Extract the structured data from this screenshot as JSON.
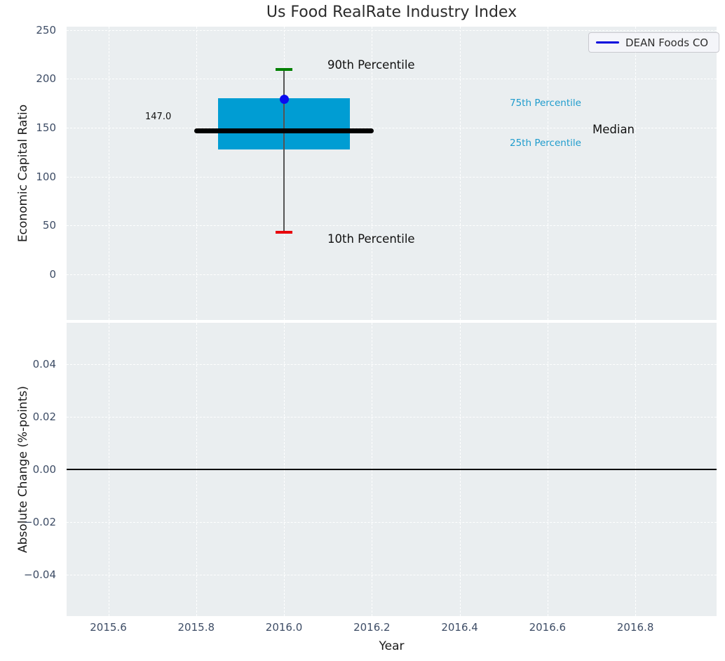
{
  "title": "Us Food RealRate Industry Index",
  "legend": {
    "label": "DEAN Foods CO"
  },
  "colors": {
    "axes_bg": "#eaeef0",
    "grid": "#ffffff",
    "tick_label": "#3e4d66",
    "box_fill": "#009dd3",
    "median": "#000000",
    "whisker": "#555555",
    "cap_90": "#008000",
    "cap_10": "#e8000b",
    "marker": "#0b0bf0",
    "legend_line": "#0000dd",
    "percentile_label": "#1f9ccd",
    "zero_line": "#000000"
  },
  "top_plot": {
    "ylabel": "Economic Capital Ratio",
    "y_tick_labels": [
      "250",
      "200",
      "150",
      "100",
      "50",
      "0"
    ],
    "annotations": {
      "median_value": "147.0",
      "p90": "90th Percentile",
      "p75": "75th Percentile",
      "median": "Median",
      "p25": "25th Percentile",
      "p10": "10th Percentile"
    }
  },
  "bottom_plot": {
    "ylabel": "Absolute Change (%-points)",
    "xlabel": "Year",
    "y_tick_labels": [
      "0.04",
      "0.02",
      "0.00",
      "−0.02",
      "−0.04"
    ],
    "x_tick_labels": [
      "2015.6",
      "2015.8",
      "2016.0",
      "2016.2",
      "2016.4",
      "2016.6",
      "2016.8"
    ]
  },
  "chart_data": [
    {
      "type": "boxplot",
      "title": "Us Food RealRate Industry Index",
      "xlabel": "Year",
      "ylabel": "Economic Capital Ratio",
      "xlim": [
        2015.505,
        2016.985
      ],
      "ylim": [
        -47,
        253.5
      ],
      "x_ticks": [
        2015.6,
        2015.8,
        2016.0,
        2016.2,
        2016.4,
        2016.6,
        2016.8
      ],
      "y_ticks": [
        250,
        200,
        150,
        100,
        50,
        0
      ],
      "grid": {
        "visible": true,
        "style": "dashed",
        "color": "#ffffff"
      },
      "legend_position": "upper right",
      "box": {
        "year": 2016.0,
        "p90": 210,
        "p75": 180,
        "median": 147.0,
        "p25": 128,
        "p10": 43,
        "box_year_span": [
          2015.85,
          2016.15
        ],
        "median_year_span": [
          2015.795,
          2016.205
        ]
      },
      "company_point": {
        "name": "DEAN Foods CO",
        "year": 2016.0,
        "value": 179
      }
    },
    {
      "type": "line",
      "xlabel": "Year",
      "ylabel": "Absolute Change (%-points)",
      "xlim": [
        2015.505,
        2016.985
      ],
      "ylim": [
        -0.0558,
        0.0558
      ],
      "x_ticks": [
        2015.6,
        2015.8,
        2016.0,
        2016.2,
        2016.4,
        2016.6,
        2016.8
      ],
      "y_ticks": [
        0.04,
        0.02,
        0.0,
        -0.02,
        -0.04
      ],
      "zero_line": 0.0,
      "series": []
    }
  ]
}
